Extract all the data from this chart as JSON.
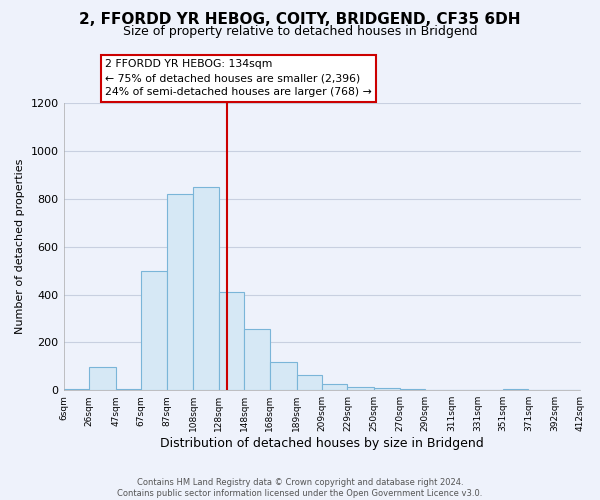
{
  "title": "2, FFORDD YR HEBOG, COITY, BRIDGEND, CF35 6DH",
  "subtitle": "Size of property relative to detached houses in Bridgend",
  "xlabel": "Distribution of detached houses by size in Bridgend",
  "ylabel": "Number of detached properties",
  "bar_left_edges": [
    6,
    26,
    47,
    67,
    87,
    108,
    128,
    148,
    168,
    189,
    209,
    229,
    250,
    270,
    290,
    311,
    331,
    351,
    371,
    392
  ],
  "bar_heights": [
    3,
    95,
    3,
    500,
    820,
    850,
    410,
    255,
    120,
    65,
    28,
    15,
    8,
    3,
    0,
    0,
    0,
    3,
    0,
    0
  ],
  "bar_widths": [
    20,
    21,
    20,
    20,
    21,
    20,
    20,
    20,
    21,
    20,
    20,
    21,
    20,
    20,
    21,
    20,
    20,
    20,
    21,
    20
  ],
  "bar_color": "#d6e8f5",
  "bar_edgecolor": "#7ab5d8",
  "tick_labels": [
    "6sqm",
    "26sqm",
    "47sqm",
    "67sqm",
    "87sqm",
    "108sqm",
    "128sqm",
    "148sqm",
    "168sqm",
    "189sqm",
    "209sqm",
    "229sqm",
    "250sqm",
    "270sqm",
    "290sqm",
    "311sqm",
    "331sqm",
    "351sqm",
    "371sqm",
    "392sqm",
    "412sqm"
  ],
  "tick_positions": [
    6,
    26,
    47,
    67,
    87,
    108,
    128,
    148,
    168,
    189,
    209,
    229,
    250,
    270,
    290,
    311,
    331,
    351,
    371,
    392,
    412
  ],
  "ylim": [
    0,
    1200
  ],
  "xlim": [
    6,
    412
  ],
  "property_line_x": 134,
  "property_line_color": "#cc0000",
  "annotation_line1": "2 FFORDD YR HEBOG: 134sqm",
  "annotation_line2": "← 75% of detached houses are smaller (2,396)",
  "annotation_line3": "24% of semi-detached houses are larger (768) →",
  "footer_text": "Contains HM Land Registry data © Crown copyright and database right 2024.\nContains public sector information licensed under the Open Government Licence v3.0.",
  "background_color": "#eef2fb",
  "grid_color": "#c8d0e0",
  "title_fontsize": 11,
  "subtitle_fontsize": 9,
  "ylabel_fontsize": 8,
  "xlabel_fontsize": 9,
  "yticks": [
    0,
    200,
    400,
    600,
    800,
    1000,
    1200
  ]
}
